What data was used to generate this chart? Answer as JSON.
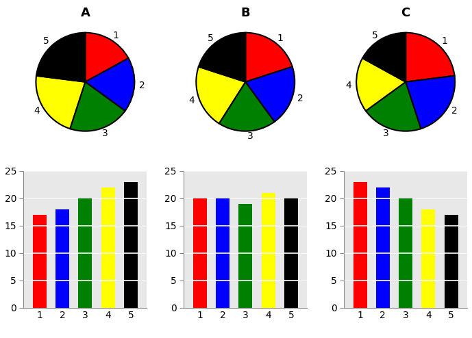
{
  "title_A": "A",
  "title_B": "B",
  "title_C": "C",
  "colors": [
    "red",
    "blue",
    "green",
    "yellow",
    "black"
  ],
  "bar_values_A": [
    17,
    18,
    20,
    22,
    23
  ],
  "bar_values_B": [
    20,
    20,
    19,
    21,
    20
  ],
  "bar_values_C": [
    23,
    22,
    20,
    18,
    17
  ],
  "pie_values_A": [
    17,
    18,
    20,
    22,
    23
  ],
  "pie_values_B": [
    20,
    20,
    19,
    21,
    20
  ],
  "pie_values_C": [
    23,
    22,
    20,
    18,
    17
  ],
  "pie_labels": [
    "1",
    "2",
    "3",
    "4",
    "5"
  ],
  "bar_xlabels": [
    "1",
    "2",
    "3",
    "4",
    "5"
  ],
  "ylim": [
    0,
    25
  ],
  "yticks": [
    0,
    5,
    10,
    15,
    20,
    25
  ],
  "hline_positions": [
    5,
    10,
    15,
    20
  ],
  "hline_color": "white",
  "hline_lw": 1.2,
  "bar_width": 0.6,
  "background_color": "white",
  "pie_startangle": 90,
  "pie_edge_color": "black",
  "pie_edge_lw": 1.5,
  "title_fontsize": 13,
  "title_fontweight": "bold",
  "bar_bg_color": "#e8e8e8",
  "axis_color": "#888888",
  "label_fontsize": 10
}
